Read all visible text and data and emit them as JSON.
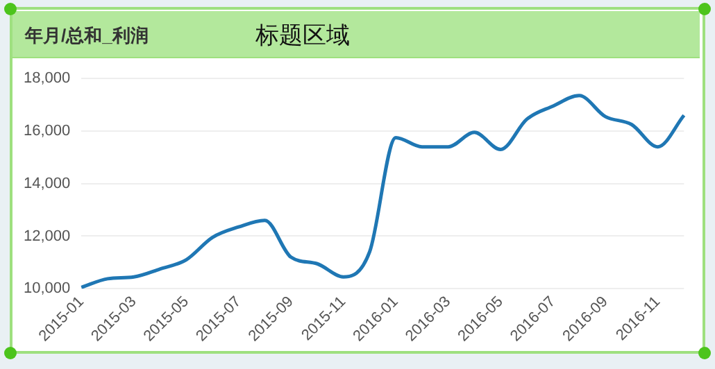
{
  "chart_data": {
    "type": "line",
    "title": "标题区域",
    "subtitle": "年月/总和_利润",
    "categories": [
      "2015-01",
      null,
      "2015-03",
      null,
      "2015-05",
      null,
      "2015-07",
      null,
      "2015-09",
      null,
      "2015-11",
      null,
      "2016-01",
      null,
      "2016-03",
      null,
      "2016-05",
      null,
      "2016-07",
      null,
      "2016-09",
      null,
      "2016-11",
      null
    ],
    "series": [
      {
        "color": "#1f77b4",
        "values": [
          10050,
          10380,
          10450,
          10750,
          11100,
          11950,
          12350,
          12600,
          11200,
          10950,
          10450,
          11400,
          15750,
          15400,
          15400,
          15950,
          15300,
          16450,
          16950,
          17350,
          16550,
          16250,
          15400,
          16600
        ]
      }
    ],
    "ylim": [
      10000,
      18000
    ],
    "yticks": [
      {
        "value": 10000,
        "label": "10,000"
      },
      {
        "value": 12000,
        "label": "12,000"
      },
      {
        "value": 14000,
        "label": "14,000"
      },
      {
        "value": 16000,
        "label": "16,000"
      },
      {
        "value": 18000,
        "label": "18,000"
      }
    ],
    "grid": "y",
    "legend": false,
    "marker": "none",
    "line_style": "solid"
  }
}
